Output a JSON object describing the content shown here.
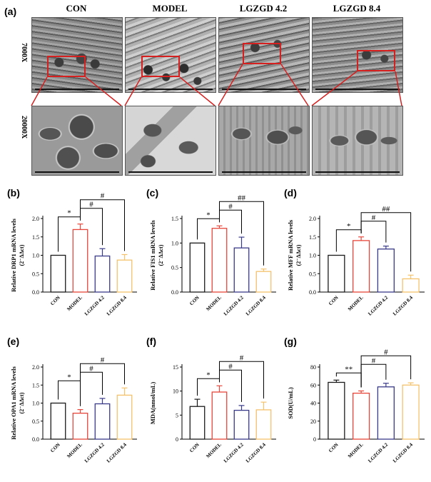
{
  "panels": {
    "a": "(a)",
    "b": "(b)",
    "c": "(c)",
    "d": "(d)",
    "e": "(e)",
    "f": "(f)",
    "g": "(g)"
  },
  "tem": {
    "groups": [
      "CON",
      "MODEL",
      "LGZGD 4.2",
      "LGZGD 8.4"
    ],
    "rows": [
      "7000X",
      "20000X"
    ]
  },
  "colors": {
    "CON": "#1a1a1a",
    "MODEL": "#e8463a",
    "LGZGD 4.2": "#3a3a8a",
    "LGZGD 8.4": "#f5c26b",
    "roi": "#d62020"
  },
  "chart_data": [
    {
      "id": "b",
      "type": "bar",
      "categories": [
        "CON",
        "MODEL",
        "LGZGD 4.2",
        "LGZGD 8.4"
      ],
      "values": [
        1.0,
        1.7,
        0.98,
        0.87
      ],
      "errors": [
        0,
        0.15,
        0.2,
        0.15
      ],
      "ylabel_main": "Relative DRP1  mRNA levels",
      "ylabel_sub": "(2⁻ΔΔct)",
      "ylim": [
        0,
        2.0
      ],
      "yticks": [
        "0.0",
        "0.5",
        "1.0",
        "1.5",
        "2.0"
      ],
      "brackets": [
        {
          "from": 0,
          "to": 1,
          "label": "*",
          "level": 0
        },
        {
          "from": 1,
          "to": 2,
          "label": "#",
          "level": 1
        },
        {
          "from": 1,
          "to": 3,
          "label": "#",
          "level": 2
        }
      ]
    },
    {
      "id": "c",
      "type": "bar",
      "categories": [
        "CON",
        "MODEL",
        "LGZGD 4.2",
        "LGZGD 8.4"
      ],
      "values": [
        1.0,
        1.3,
        0.9,
        0.42
      ],
      "errors": [
        0,
        0.05,
        0.22,
        0.05
      ],
      "ylabel_main": "Relative FIS1  mRNA levels",
      "ylabel_sub": "(2⁻ΔΔct)",
      "ylim": [
        0,
        1.5
      ],
      "yticks": [
        "0.0",
        "0.5",
        "1.0",
        "1.5"
      ],
      "brackets": [
        {
          "from": 0,
          "to": 1,
          "label": "*",
          "level": 0
        },
        {
          "from": 1,
          "to": 2,
          "label": "#",
          "level": 1
        },
        {
          "from": 1,
          "to": 3,
          "label": "##",
          "level": 2
        }
      ]
    },
    {
      "id": "d",
      "type": "bar",
      "categories": [
        "CON",
        "MODEL",
        "LGZGD 4.2",
        "LGZGD 8.4"
      ],
      "values": [
        1.0,
        1.4,
        1.17,
        0.36
      ],
      "errors": [
        0,
        0.1,
        0.08,
        0.1
      ],
      "ylabel_main": "Relative MFF  mRNA levels",
      "ylabel_sub": "(2⁻ΔΔct)",
      "ylim": [
        0,
        2.0
      ],
      "yticks": [
        "0.0",
        "0.5",
        "1.0",
        "1.5",
        "2.0"
      ],
      "brackets": [
        {
          "from": 0,
          "to": 1,
          "label": "*",
          "level": 0
        },
        {
          "from": 1,
          "to": 2,
          "label": "#",
          "level": 1
        },
        {
          "from": 1,
          "to": 3,
          "label": "##",
          "level": 2
        }
      ]
    },
    {
      "id": "e",
      "type": "bar",
      "categories": [
        "CON",
        "MODEL",
        "LGZGD 4.2",
        "LGZGD 8.4"
      ],
      "values": [
        1.0,
        0.72,
        0.98,
        1.22
      ],
      "errors": [
        0,
        0.1,
        0.15,
        0.2
      ],
      "ylabel_main": "Relative OPA1  mRNA levels",
      "ylabel_sub": "(2⁻ΔΔct)",
      "ylim": [
        0,
        2.0
      ],
      "yticks": [
        "0.0",
        "0.5",
        "1.0",
        "1.5",
        "2.0"
      ],
      "brackets": [
        {
          "from": 0,
          "to": 1,
          "label": "*",
          "level": 0
        },
        {
          "from": 1,
          "to": 2,
          "label": "#",
          "level": 1
        },
        {
          "from": 1,
          "to": 3,
          "label": "#",
          "level": 2
        }
      ]
    },
    {
      "id": "f",
      "type": "bar",
      "categories": [
        "CON",
        "MODEL",
        "LGZGD 4.2",
        "LGZGD 8.4"
      ],
      "values": [
        6.8,
        9.8,
        6.0,
        6.1
      ],
      "errors": [
        1.5,
        1.3,
        1.0,
        1.6
      ],
      "ylabel_main": "MDA(nmol/mL)",
      "ylabel_sub": "",
      "ylim": [
        0,
        15
      ],
      "yticks": [
        "0",
        "5",
        "10",
        "15"
      ],
      "brackets": [
        {
          "from": 0,
          "to": 1,
          "label": "*",
          "level": 0
        },
        {
          "from": 1,
          "to": 2,
          "label": "#",
          "level": 1
        },
        {
          "from": 1,
          "to": 3,
          "label": "#",
          "level": 2
        }
      ]
    },
    {
      "id": "g",
      "type": "bar",
      "categories": [
        "CON",
        "MODEL",
        "LGZGD 4.2",
        "LGZGD 8.4"
      ],
      "values": [
        63,
        51,
        58,
        60
      ],
      "errors": [
        2.5,
        2.5,
        4.0,
        2.5
      ],
      "ylabel_main": "SOD(U/mL)",
      "ylabel_sub": "",
      "ylim": [
        0,
        80
      ],
      "yticks": [
        "0",
        "20",
        "40",
        "60",
        "80"
      ],
      "brackets": [
        {
          "from": 0,
          "to": 1,
          "label": "**",
          "level": 0
        },
        {
          "from": 1,
          "to": 2,
          "label": "#",
          "level": 1
        },
        {
          "from": 1,
          "to": 3,
          "label": "#",
          "level": 2
        }
      ]
    }
  ]
}
